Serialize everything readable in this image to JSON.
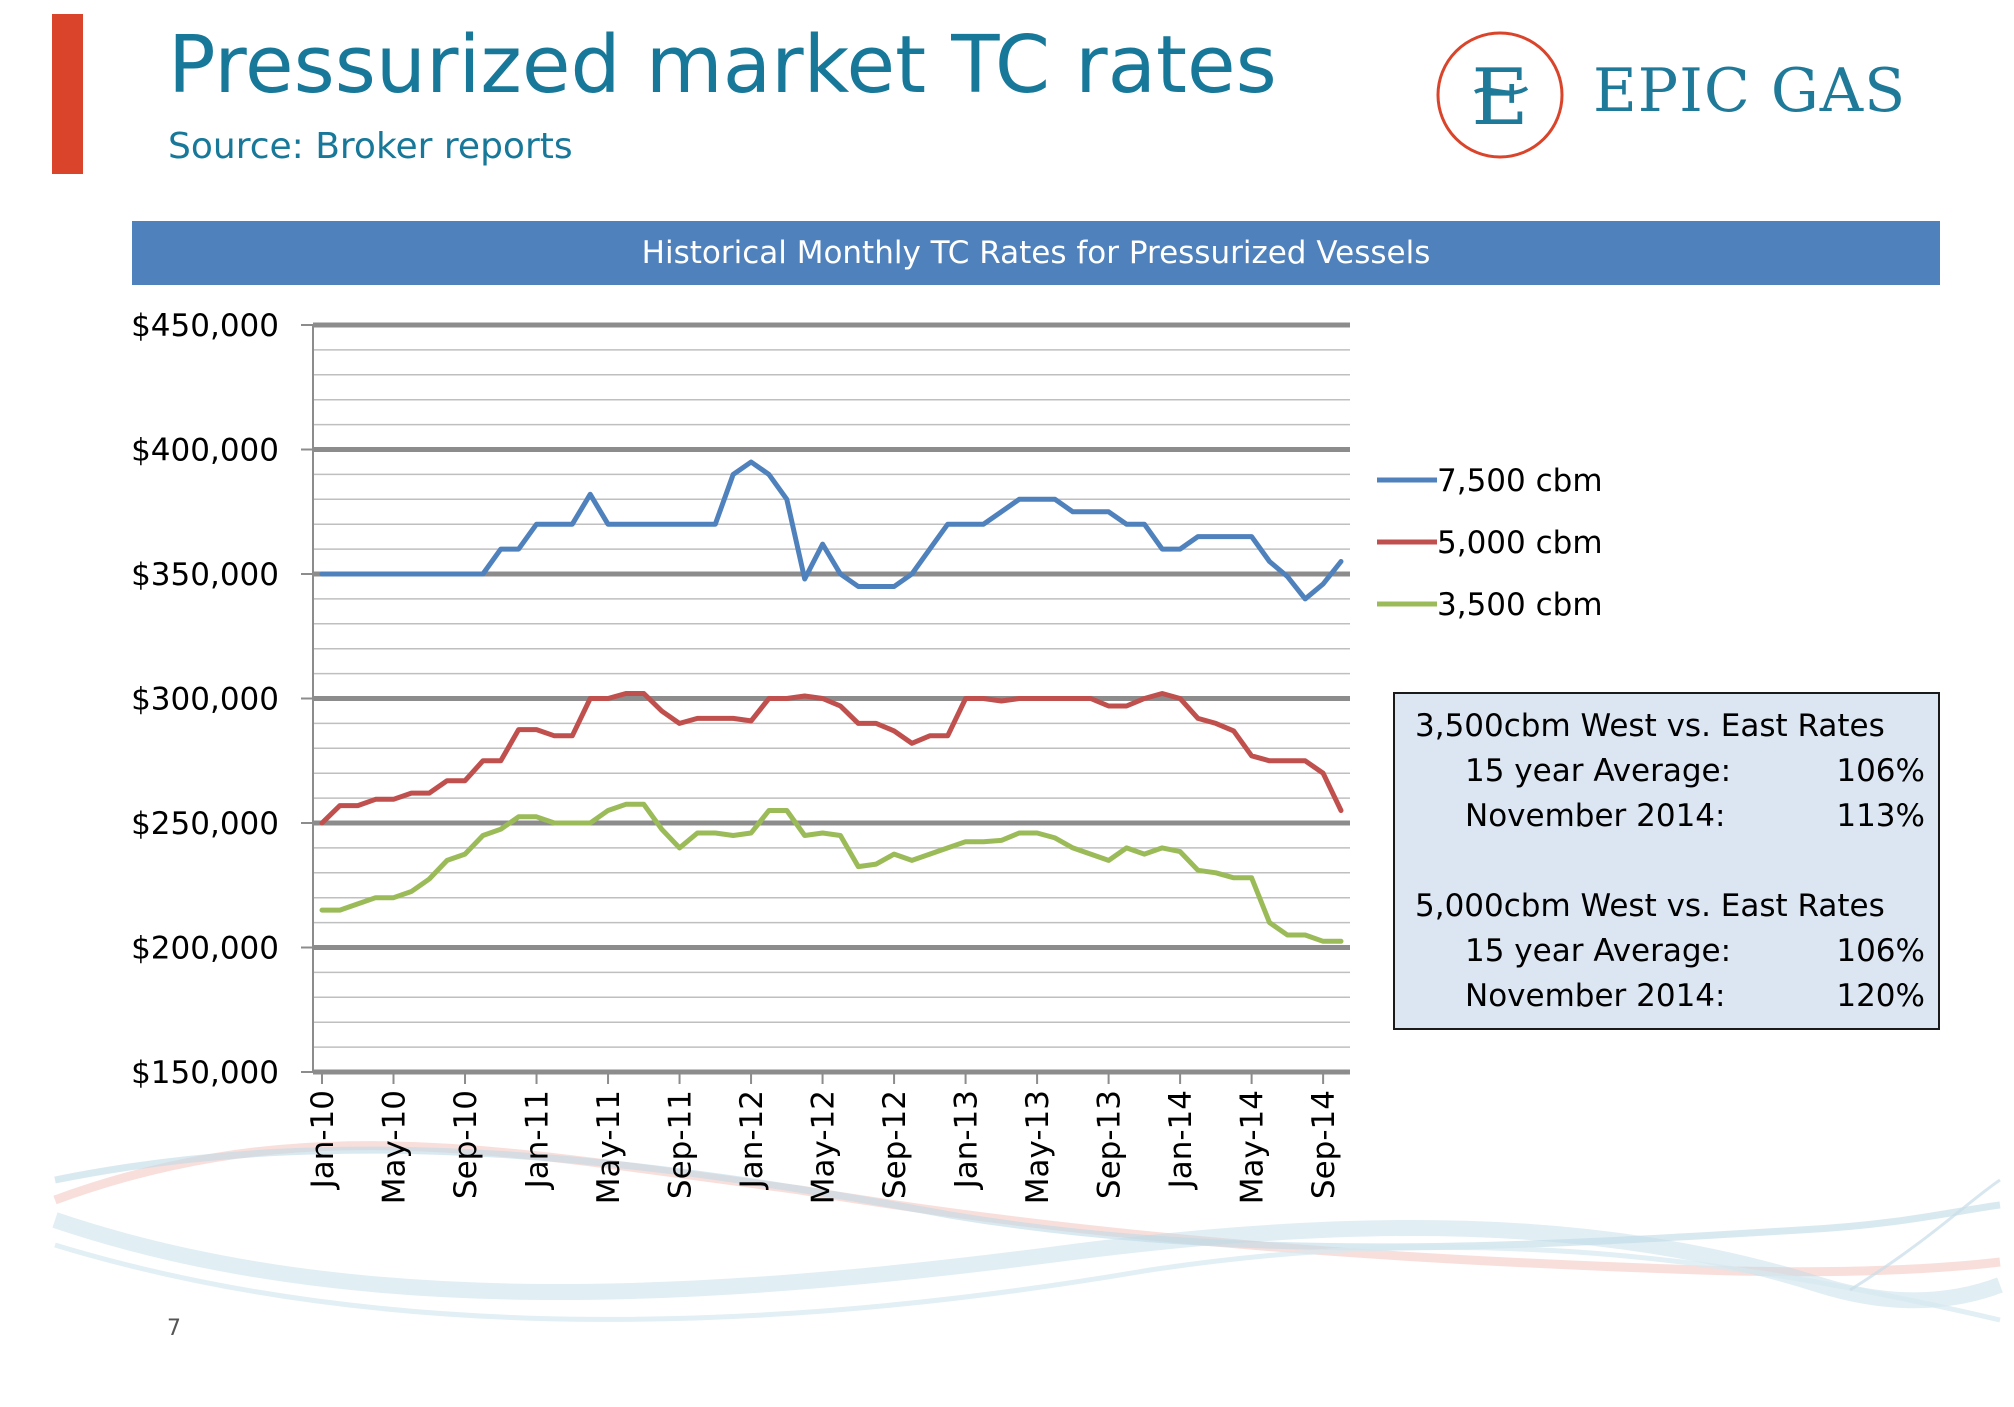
{
  "header": {
    "title": "Pressurized market TC rates",
    "subtitle": "Source: Broker reports",
    "logo_letter": "E",
    "logo_text": "EPIC GAS"
  },
  "banner": {
    "text": "Historical Monthly TC Rates for Pressurized Vessels"
  },
  "chart_data": {
    "type": "line",
    "title": "Historical Monthly TC Rates for Pressurized Vessels",
    "xlabel": "",
    "ylabel": "",
    "ylim": [
      150000,
      450000
    ],
    "major_ticks": [
      150000,
      200000,
      250000,
      300000,
      350000,
      400000,
      450000
    ],
    "y_tick_labels": [
      "$150,000",
      "$200,000",
      "$250,000",
      "$300,000",
      "$350,000",
      "$400,000",
      "$450,000"
    ],
    "minor_step": 10000,
    "x_tick_labels": [
      "Jan-10",
      "May-10",
      "Sep-10",
      "Jan-11",
      "May-11",
      "Sep-11",
      "Jan-12",
      "May-12",
      "Sep-12",
      "Jan-13",
      "May-13",
      "Sep-13",
      "Jan-14",
      "May-14",
      "Sep-14"
    ],
    "x_tick_month_index": [
      0,
      4,
      8,
      12,
      16,
      20,
      24,
      28,
      32,
      36,
      40,
      44,
      48,
      52,
      56
    ],
    "x_months": 58,
    "legend_position": "right",
    "series": [
      {
        "name": "7,500 cbm",
        "color": "#4f81bd",
        "values": [
          350000,
          350000,
          350000,
          350000,
          350000,
          350000,
          350000,
          350000,
          350000,
          350000,
          360000,
          360000,
          370000,
          370000,
          370000,
          382000,
          370000,
          370000,
          370000,
          370000,
          370000,
          370000,
          370000,
          390000,
          395000,
          390000,
          380000,
          348000,
          362000,
          350000,
          345000,
          345000,
          345000,
          350000,
          360000,
          370000,
          370000,
          370000,
          375000,
          380000,
          380000,
          380000,
          375000,
          375000,
          375000,
          370000,
          370000,
          360000,
          360000,
          365000,
          365000,
          365000,
          365000,
          355000,
          349000,
          340000,
          346000,
          355000
        ]
      },
      {
        "name": "5,000 cbm",
        "color": "#c0504d",
        "values": [
          250000,
          257000,
          257000,
          259500,
          259500,
          262000,
          262000,
          267000,
          267000,
          275000,
          275000,
          287500,
          287500,
          285000,
          285000,
          300000,
          300000,
          302000,
          302000,
          295000,
          290000,
          292000,
          292000,
          292000,
          291000,
          300000,
          300000,
          301000,
          300000,
          297000,
          290000,
          290000,
          287000,
          282000,
          285000,
          285000,
          300000,
          300000,
          299000,
          300000,
          300000,
          300000,
          300000,
          300000,
          297000,
          297000,
          300000,
          302000,
          300000,
          292000,
          290000,
          287000,
          277000,
          275000,
          275000,
          275000,
          270000,
          255000
        ]
      },
      {
        "name": "3,500 cbm",
        "color": "#9bbb59",
        "values": [
          215000,
          215000,
          217500,
          220000,
          220000,
          222500,
          227500,
          235000,
          237500,
          245000,
          247500,
          252500,
          252500,
          250000,
          250000,
          250000,
          255000,
          257500,
          257500,
          247500,
          240000,
          246000,
          246000,
          245000,
          246000,
          255000,
          255000,
          245000,
          246000,
          245000,
          232500,
          233500,
          237500,
          235000,
          237500,
          240000,
          242500,
          242500,
          243000,
          246000,
          246000,
          244000,
          240000,
          237500,
          235000,
          240000,
          237500,
          240000,
          238500,
          231000,
          230000,
          228000,
          228000,
          210000,
          205000,
          205000,
          202500,
          202500
        ]
      }
    ]
  },
  "stats_box": {
    "groups": [
      {
        "heading": "3,500cbm West vs. East Rates",
        "rows": [
          {
            "label": "15 year Average:",
            "value": "106%"
          },
          {
            "label": "November 2014:",
            "value": "113%"
          }
        ]
      },
      {
        "heading": "5,000cbm West vs. East Rates",
        "rows": [
          {
            "label": "15 year Average:",
            "value": "106%"
          },
          {
            "label": "November 2014:",
            "value": "120%"
          }
        ]
      }
    ]
  },
  "footer": {
    "page_number": "7"
  }
}
